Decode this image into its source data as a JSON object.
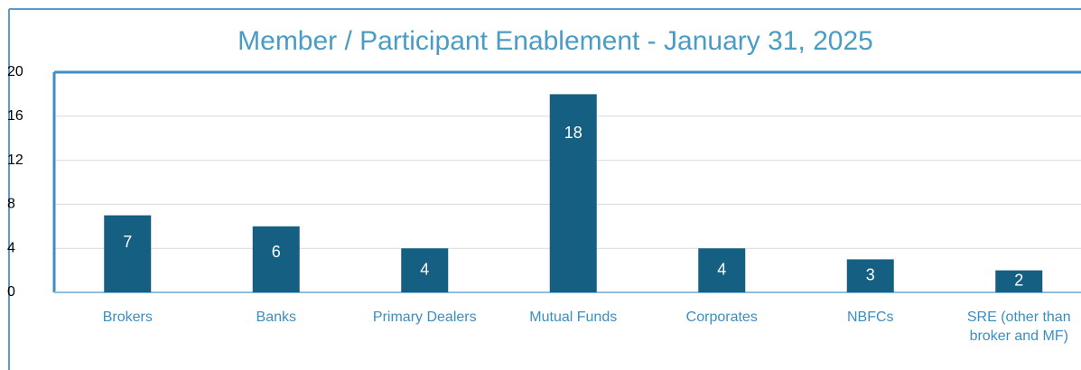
{
  "chart_data": {
    "type": "bar",
    "title": "Member / Participant Enablement - January 31, 2025",
    "categories": [
      "Brokers",
      "Banks",
      "Primary Dealers",
      "Mutual Funds",
      "Corporates",
      "NBFCs",
      "SRE (other than broker and MF)"
    ],
    "values": [
      7,
      6,
      4,
      18,
      4,
      3,
      2
    ],
    "color": "#155f82",
    "ylim": [
      0,
      20
    ],
    "yticks": [
      0,
      4,
      8,
      12,
      16,
      20
    ],
    "grid": true
  }
}
